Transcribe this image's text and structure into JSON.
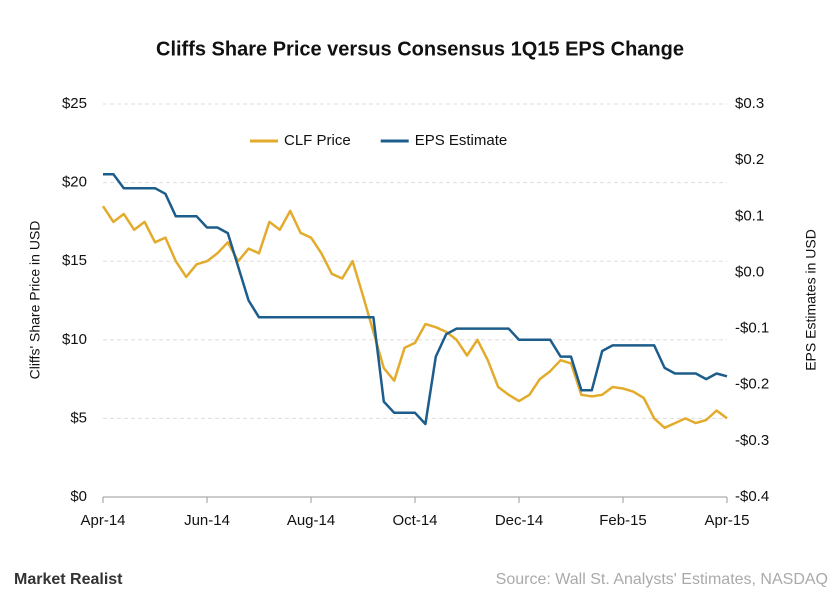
{
  "chart_data": {
    "type": "line",
    "title": "Cliffs Share Price versus Consensus 1Q15 EPS Change",
    "y_label": "Cliffs' Share Price in USD",
    "y2_label": "EPS Estimates in USD",
    "source": "Source: Wall St. Analysts' Estimates, NASDAQ",
    "brand": "Market Realist",
    "legend": "top",
    "grid": true,
    "categories": [
      "Apr-14",
      null,
      null,
      null,
      null,
      null,
      null,
      null,
      null,
      null,
      "Jun-14",
      null,
      null,
      null,
      null,
      null,
      null,
      null,
      null,
      null,
      "Aug-14",
      null,
      null,
      null,
      null,
      null,
      null,
      null,
      null,
      null,
      "Oct-14",
      null,
      null,
      null,
      null,
      null,
      null,
      null,
      null,
      null,
      "Dec-14",
      null,
      null,
      null,
      null,
      null,
      null,
      null,
      null,
      null,
      "Feb-15",
      null,
      null,
      null,
      null,
      null,
      null,
      null,
      null,
      null,
      "Apr-15"
    ],
    "series": [
      {
        "name": "CLF Price",
        "color": "#e3ab2c",
        "values": [
          18.5,
          17.5,
          18,
          17,
          17.5,
          16.2,
          16.5,
          15,
          14,
          14.8,
          15,
          15.5,
          16.2,
          15,
          15.8,
          15.5,
          17.5,
          17,
          18.2,
          16.8,
          16.5,
          15.5,
          14.2,
          13.9,
          15,
          12.8,
          10.5,
          8.2,
          7.4,
          9.5,
          9.8,
          11,
          10.8,
          10.5,
          10,
          9,
          10,
          8.7,
          7,
          6.5,
          6.1,
          6.5,
          7.5,
          8,
          8.7,
          8.5,
          6.5,
          6.4,
          6.5,
          7,
          6.9,
          6.7,
          6.3,
          5,
          4.4,
          4.7,
          5,
          4.7,
          4.9,
          5.5,
          5
        ]
      },
      {
        "name": "EPS Estimate",
        "color": "#1d5d8c",
        "axis": "y2",
        "values": [
          0.175,
          0.175,
          0.15,
          0.15,
          0.15,
          0.15,
          0.14,
          0.1,
          0.1,
          0.1,
          0.08,
          0.08,
          0.07,
          0.01,
          -0.05,
          -0.08,
          -0.08,
          -0.08,
          -0.08,
          -0.08,
          -0.08,
          -0.08,
          -0.08,
          -0.08,
          -0.08,
          -0.08,
          -0.08,
          -0.23,
          -0.25,
          -0.25,
          -0.25,
          -0.27,
          -0.15,
          -0.11,
          -0.1,
          -0.1,
          -0.1,
          -0.1,
          -0.1,
          -0.1,
          -0.12,
          -0.12,
          -0.12,
          -0.12,
          -0.15,
          -0.15,
          -0.21,
          -0.21,
          -0.14,
          -0.13,
          -0.13,
          -0.13,
          -0.13,
          -0.13,
          -0.17,
          -0.18,
          -0.18,
          -0.18,
          -0.19,
          -0.18,
          -0.185
        ]
      }
    ],
    "ylim": [
      0,
      25
    ],
    "yticks": [
      {
        "value": 0,
        "label": "$0"
      },
      {
        "value": 5,
        "label": "$5"
      },
      {
        "value": 10,
        "label": "$10"
      },
      {
        "value": 15,
        "label": "$15"
      },
      {
        "value": 20,
        "label": "$20"
      },
      {
        "value": 25,
        "label": "$25"
      }
    ],
    "y2lim": [
      -0.4,
      0.3
    ],
    "y2ticks": [
      {
        "value": -0.4,
        "label": "-$0.4"
      },
      {
        "value": -0.3,
        "label": "-$0.3"
      },
      {
        "value": -0.2,
        "label": "-$0.2"
      },
      {
        "value": -0.1,
        "label": "-$0.1"
      },
      {
        "value": 0,
        "label": "$0.0"
      },
      {
        "value": 0.1,
        "label": "$0.1"
      },
      {
        "value": 0.2,
        "label": "$0.2"
      },
      {
        "value": 0.3,
        "label": "$0.3"
      }
    ]
  }
}
